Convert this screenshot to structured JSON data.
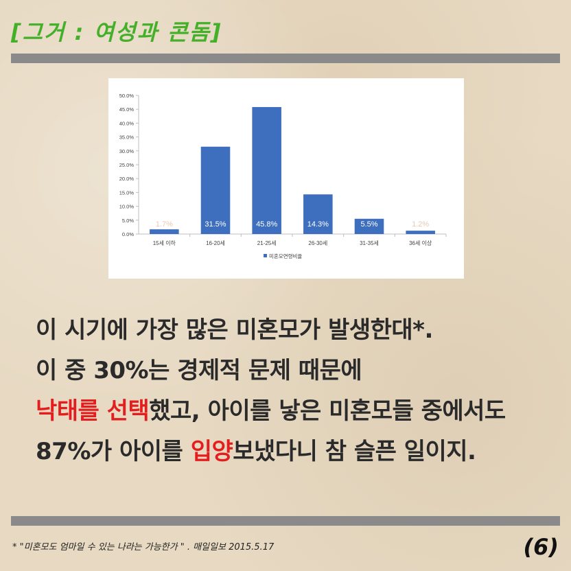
{
  "header": {
    "title": "[그거 : 여성과 콘돔]"
  },
  "chart_data": {
    "type": "bar",
    "categories": [
      "15세 이하",
      "16-20세",
      "21-25세",
      "26-30세",
      "31-35세",
      "36세 이상"
    ],
    "series": [
      {
        "name": "미혼모연령비율",
        "values": [
          1.7,
          31.5,
          45.8,
          14.3,
          5.5,
          1.2
        ]
      }
    ],
    "data_labels": [
      "1.7%",
      "31.5%",
      "45.8%",
      "14.3%",
      "5.5%",
      "1.2%"
    ],
    "ylim": [
      0,
      50
    ],
    "y_ticks": [
      "0.0%",
      "5.0%",
      "10.0%",
      "15.0%",
      "20.0%",
      "25.0%",
      "30.0%",
      "35.0%",
      "40.0%",
      "45.0%",
      "50.0%"
    ],
    "grid": false,
    "legend_position": "bottom",
    "bar_color": "#3e6fbf"
  },
  "body": {
    "line1": "이 시기에 가장 많은 미혼모가 발생한대*.",
    "line2": "이 중 30%는 경제적 문제 때문에",
    "line3_hl": "낙태를 선택",
    "line3_rest": "했고, 아이를 낳은 미혼모들 중에서도",
    "line4_pre": "87%가 아이를 ",
    "line4_hl": "입양",
    "line4_post": "보냈다니 참 슬픈 일이지."
  },
  "footnote": "*  \"미혼모도 엄마일 수 있는 나라는 가능한가 \" . 매일일보 2015.5.17",
  "page_number": "(6)",
  "colors": {
    "title": "#44b02a",
    "highlight": "#e41e1e",
    "rule": "#8a8a8a"
  }
}
